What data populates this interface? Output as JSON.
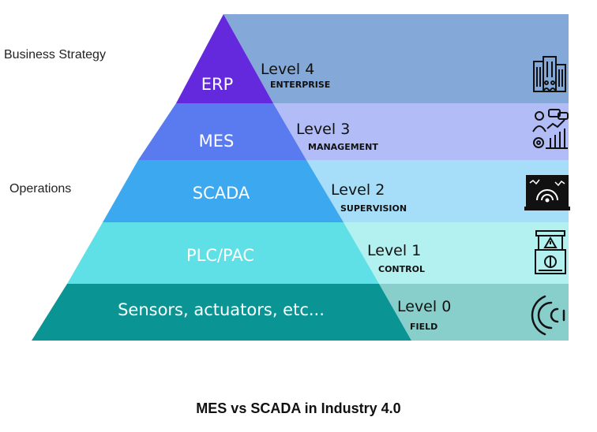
{
  "side_labels": {
    "business_strategy": "Business Strategy",
    "operations": "Operations"
  },
  "caption": "MES vs SCADA in Industry 4.0",
  "levels": [
    {
      "system": "ERP",
      "level": "Level 4",
      "scope": "ENTERPRISE",
      "icon": "enterprise-building-icon",
      "tri_color": "#6429dd",
      "band_color": "#84a8d8"
    },
    {
      "system": "MES",
      "level": "Level 3",
      "scope": "MANAGEMENT",
      "icon": "manager-analytics-icon",
      "tri_color": "#5a7bef",
      "band_color": "#b2bdf7"
    },
    {
      "system": "SCADA",
      "level": "Level 2",
      "scope": "SUPERVISION",
      "icon": "monitor-display-icon",
      "tri_color": "#3ca8f0",
      "band_color": "#a6ddf8"
    },
    {
      "system": "PLC/PAC",
      "level": "Level 1",
      "scope": "CONTROL",
      "icon": "control-cabinet-icon",
      "tri_color": "#5ee0e6",
      "band_color": "#b3f0f0"
    },
    {
      "system": "Sensors, actuators, etc...",
      "level": "Level 0",
      "scope": "FIELD",
      "icon": "wireless-sensor-icon",
      "tri_color": "#0b9494",
      "band_color": "#88cfcc"
    }
  ]
}
